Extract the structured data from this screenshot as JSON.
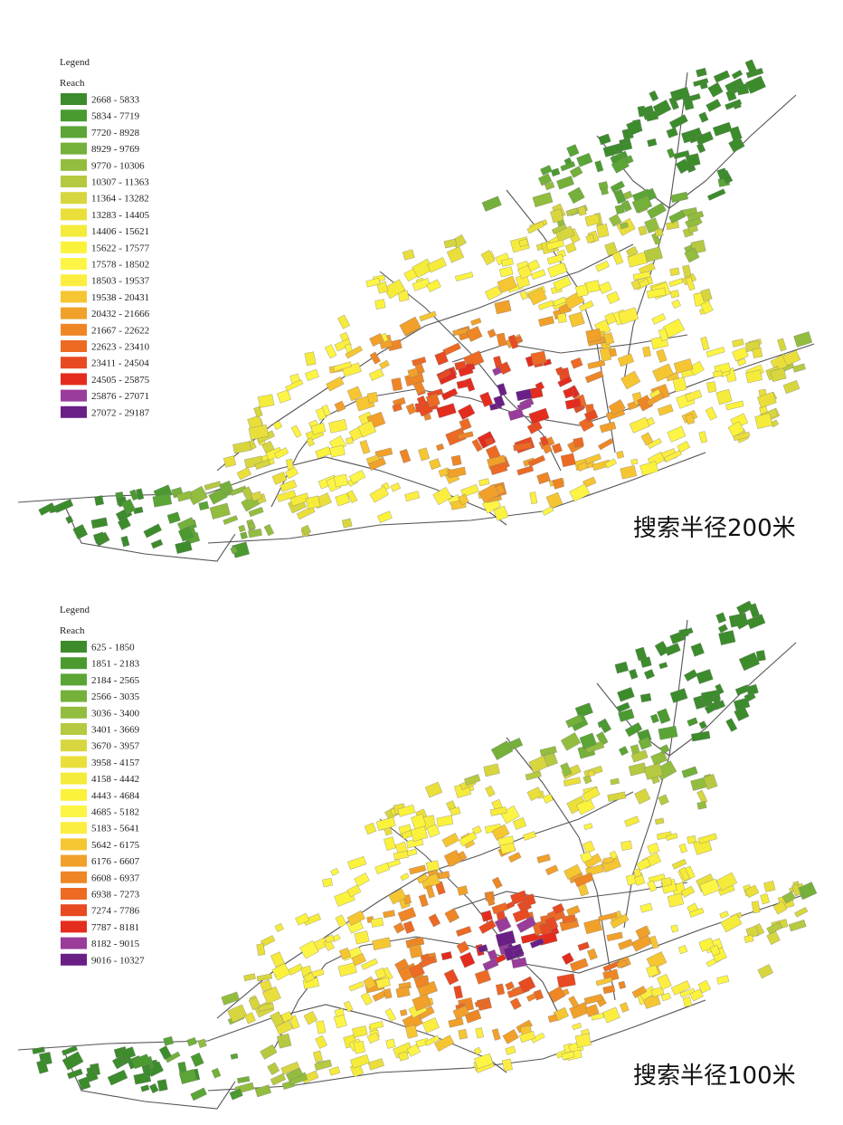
{
  "panels": [
    {
      "legend_title": "Legend",
      "field": "Reach",
      "caption": "搜索半径200米",
      "classes": [
        {
          "label": "2668 - 5833",
          "color": "#3c8c2c"
        },
        {
          "label": "5834 - 7719",
          "color": "#4a9a30"
        },
        {
          "label": "7720 - 8928",
          "color": "#5aa535"
        },
        {
          "label": "8929 - 9769",
          "color": "#74b03a"
        },
        {
          "label": "9770 - 10306",
          "color": "#93bd3e"
        },
        {
          "label": "10307 - 11363",
          "color": "#b6c940"
        },
        {
          "label": "11364 - 13282",
          "color": "#d7d63e"
        },
        {
          "label": "13283 - 14405",
          "color": "#eadf3a"
        },
        {
          "label": "14406 - 15621",
          "color": "#f5eb3a"
        },
        {
          "label": "15622 - 17577",
          "color": "#fbf23c"
        },
        {
          "label": "17578 - 18502",
          "color": "#fdf545"
        },
        {
          "label": "18503 - 19537",
          "color": "#fcee40"
        },
        {
          "label": "19538 - 20431",
          "color": "#f6c532"
        },
        {
          "label": "20432 - 21666",
          "color": "#f1a02a"
        },
        {
          "label": "21667 - 22622",
          "color": "#ee8626"
        },
        {
          "label": "22623 - 23410",
          "color": "#ec6a24"
        },
        {
          "label": "23411 - 24504",
          "color": "#e84a22"
        },
        {
          "label": "24505 - 25875",
          "color": "#e42c1e"
        },
        {
          "label": "25876 - 27071",
          "color": "#9a3c9a"
        },
        {
          "label": "27072 - 29187",
          "color": "#6a1f86"
        }
      ]
    },
    {
      "legend_title": "Legend",
      "field": "Reach",
      "caption": "搜索半径100米",
      "classes": [
        {
          "label": "625 - 1850",
          "color": "#3c8c2c"
        },
        {
          "label": "1851 - 2183",
          "color": "#4a9a30"
        },
        {
          "label": "2184 - 2565",
          "color": "#5aa535"
        },
        {
          "label": "2566 - 3035",
          "color": "#74b03a"
        },
        {
          "label": "3036 - 3400",
          "color": "#93bd3e"
        },
        {
          "label": "3401 - 3669",
          "color": "#b6c940"
        },
        {
          "label": "3670 - 3957",
          "color": "#d7d63e"
        },
        {
          "label": "3958 - 4157",
          "color": "#eadf3a"
        },
        {
          "label": "4158 - 4442",
          "color": "#f5eb3a"
        },
        {
          "label": "4443 - 4684",
          "color": "#fbf23c"
        },
        {
          "label": "4685 - 5182",
          "color": "#fdf545"
        },
        {
          "label": "5183 - 5641",
          "color": "#fcee40"
        },
        {
          "label": "5642 - 6175",
          "color": "#f6c532"
        },
        {
          "label": "6176 - 6607",
          "color": "#f1a02a"
        },
        {
          "label": "6608 - 6937",
          "color": "#ee8626"
        },
        {
          "label": "6938 - 7273",
          "color": "#ec6a24"
        },
        {
          "label": "7274 - 7786",
          "color": "#e84a22"
        },
        {
          "label": "7787 - 8181",
          "color": "#e42c1e"
        },
        {
          "label": "8182 - 9015",
          "color": "#9a3c9a"
        },
        {
          "label": "9016 - 10327",
          "color": "#6a1f86"
        }
      ]
    }
  ]
}
